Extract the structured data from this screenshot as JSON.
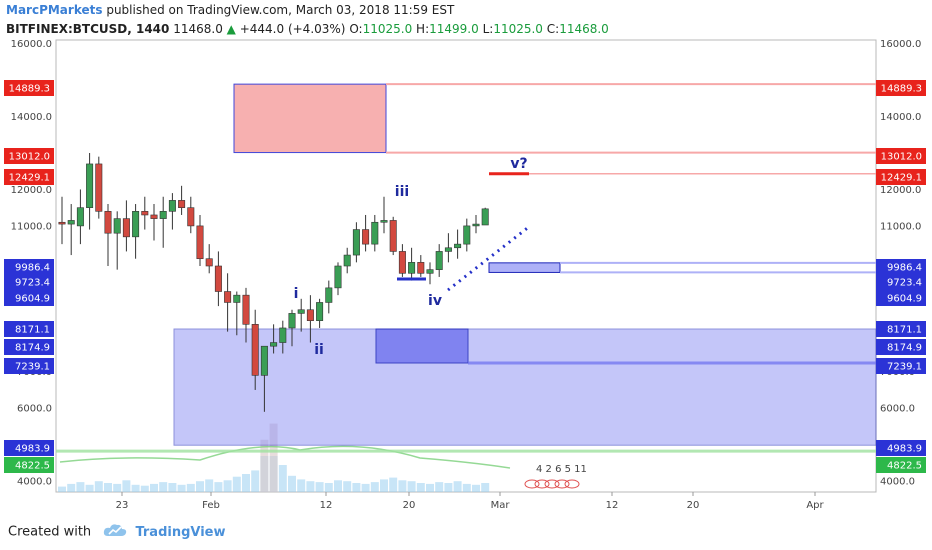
{
  "header": {
    "author": "MarcPMarkets",
    "published_text": "published on TradingView.com, March 03, 2018 11:59 EST",
    "symbol": "BITFINEX:BTCUSD, 1440",
    "last": "11468.0",
    "change_arrow": "▲",
    "change": "+444.0 (+4.03%)",
    "o_label": "O:",
    "o_value": "11025.0",
    "h_label": "H:",
    "h_value": "11499.0",
    "l_label": "L:",
    "l_value": "11025.0",
    "c_label": "C:",
    "c_value": "11468.0"
  },
  "footer": {
    "created_with": "Created with",
    "brand": "TradingView"
  },
  "colors": {
    "up": "#3a9e55",
    "down": "#d2493f",
    "zone_blue": "#8b8ff5",
    "zone_red": "#f7a8a8",
    "tag_red": "#e8231c",
    "tag_blue": "#2b33d6",
    "tag_green": "#2db84a",
    "wave_label": "#1f2a9e",
    "volume": "#9ad0f0"
  },
  "chart_data": {
    "type": "candlestick",
    "y_range": [
      3700,
      16100
    ],
    "y_ticks": [
      "4000.0",
      "5000.0",
      "6000.0",
      "7000.0",
      "11000.0",
      "12000.0",
      "14000.0",
      "16000.0"
    ],
    "x_ticks": [
      "23",
      "Feb",
      "12",
      "20",
      "Mar",
      "12",
      "20",
      "Apr"
    ],
    "candles": [
      {
        "o": 11100,
        "h": 11800,
        "l": 10500,
        "c": 11050
      },
      {
        "o": 11050,
        "h": 11600,
        "l": 10200,
        "c": 11150
      },
      {
        "o": 11000,
        "h": 12000,
        "l": 10500,
        "c": 11500
      },
      {
        "o": 11500,
        "h": 13000,
        "l": 10900,
        "c": 12700
      },
      {
        "o": 12700,
        "h": 12900,
        "l": 11200,
        "c": 11400
      },
      {
        "o": 11400,
        "h": 11600,
        "l": 9900,
        "c": 10800
      },
      {
        "o": 10800,
        "h": 11400,
        "l": 9800,
        "c": 11200
      },
      {
        "o": 11200,
        "h": 11700,
        "l": 10300,
        "c": 10700
      },
      {
        "o": 10700,
        "h": 11600,
        "l": 10100,
        "c": 11400
      },
      {
        "o": 11400,
        "h": 11800,
        "l": 10900,
        "c": 11300
      },
      {
        "o": 11300,
        "h": 11600,
        "l": 10600,
        "c": 11200
      },
      {
        "o": 11200,
        "h": 11800,
        "l": 10400,
        "c": 11400
      },
      {
        "o": 11400,
        "h": 11900,
        "l": 10900,
        "c": 11700
      },
      {
        "o": 11700,
        "h": 12100,
        "l": 11300,
        "c": 11500
      },
      {
        "o": 11500,
        "h": 11800,
        "l": 10800,
        "c": 11000
      },
      {
        "o": 11000,
        "h": 11300,
        "l": 9900,
        "c": 10100
      },
      {
        "o": 10100,
        "h": 10500,
        "l": 9700,
        "c": 9900
      },
      {
        "o": 9900,
        "h": 10300,
        "l": 8800,
        "c": 9200
      },
      {
        "o": 9200,
        "h": 9700,
        "l": 8100,
        "c": 8900
      },
      {
        "o": 8900,
        "h": 9200,
        "l": 8000,
        "c": 9100
      },
      {
        "o": 9100,
        "h": 9300,
        "l": 7800,
        "c": 8300
      },
      {
        "o": 8300,
        "h": 8700,
        "l": 6500,
        "c": 6900
      },
      {
        "o": 6900,
        "h": 7700,
        "l": 5900,
        "c": 7700
      },
      {
        "o": 7700,
        "h": 8300,
        "l": 7500,
        "c": 7800
      },
      {
        "o": 7800,
        "h": 8400,
        "l": 7500,
        "c": 8200
      },
      {
        "o": 8200,
        "h": 8700,
        "l": 7700,
        "c": 8600
      },
      {
        "o": 8600,
        "h": 9000,
        "l": 8100,
        "c": 8700
      },
      {
        "o": 8700,
        "h": 9100,
        "l": 7800,
        "c": 8400
      },
      {
        "o": 8400,
        "h": 9000,
        "l": 8200,
        "c": 8900
      },
      {
        "o": 8900,
        "h": 9500,
        "l": 8600,
        "c": 9300
      },
      {
        "o": 9300,
        "h": 10000,
        "l": 9100,
        "c": 9900
      },
      {
        "o": 9900,
        "h": 10400,
        "l": 9700,
        "c": 10200
      },
      {
        "o": 10200,
        "h": 11100,
        "l": 10000,
        "c": 10900
      },
      {
        "o": 10900,
        "h": 11300,
        "l": 10300,
        "c": 10500
      },
      {
        "o": 10500,
        "h": 11300,
        "l": 10300,
        "c": 11100
      },
      {
        "o": 11100,
        "h": 11800,
        "l": 10800,
        "c": 11150
      },
      {
        "o": 11150,
        "h": 11250,
        "l": 10200,
        "c": 10300
      },
      {
        "o": 10300,
        "h": 10500,
        "l": 9600,
        "c": 9700
      },
      {
        "o": 9700,
        "h": 10400,
        "l": 9500,
        "c": 10000
      },
      {
        "o": 10000,
        "h": 10200,
        "l": 9600,
        "c": 9700
      },
      {
        "o": 9700,
        "h": 10000,
        "l": 9400,
        "c": 9800
      },
      {
        "o": 9800,
        "h": 10500,
        "l": 9600,
        "c": 10300
      },
      {
        "o": 10300,
        "h": 10800,
        "l": 10000,
        "c": 10400
      },
      {
        "o": 10400,
        "h": 10900,
        "l": 10100,
        "c": 10500
      },
      {
        "o": 10500,
        "h": 11200,
        "l": 10300,
        "c": 11000
      },
      {
        "o": 11000,
        "h": 11300,
        "l": 10800,
        "c": 11050
      },
      {
        "o": 11025,
        "h": 11499,
        "l": 11025,
        "c": 11468
      }
    ],
    "price_levels": [
      {
        "label": "14889.3",
        "value": 14889.3,
        "color": "red"
      },
      {
        "label": "13012.0",
        "value": 13012.0,
        "color": "red"
      },
      {
        "label": "12429.1",
        "value": 12429.1,
        "color": "red"
      },
      {
        "label": "9986.4",
        "value": 9986.4,
        "color": "blue"
      },
      {
        "label": "9723.4",
        "value": 9723.4,
        "color": "blue"
      },
      {
        "label": "9604.9",
        "value": 9604.9,
        "color": "blue"
      },
      {
        "label": "8171.1",
        "value": 8171.1,
        "color": "blue"
      },
      {
        "label": "8174.9",
        "value": 8174.9,
        "color": "blue"
      },
      {
        "label": "7239.1",
        "value": 7239.1,
        "color": "blue"
      },
      {
        "label": "4983.9",
        "value": 4983.9,
        "color": "blue"
      },
      {
        "label": "4822.5",
        "value": 4822.5,
        "color": "green"
      }
    ],
    "wave_labels": [
      "i",
      "ii",
      "iii",
      "iv",
      "v?"
    ],
    "event_numbers": "4 2 6 5 11"
  }
}
